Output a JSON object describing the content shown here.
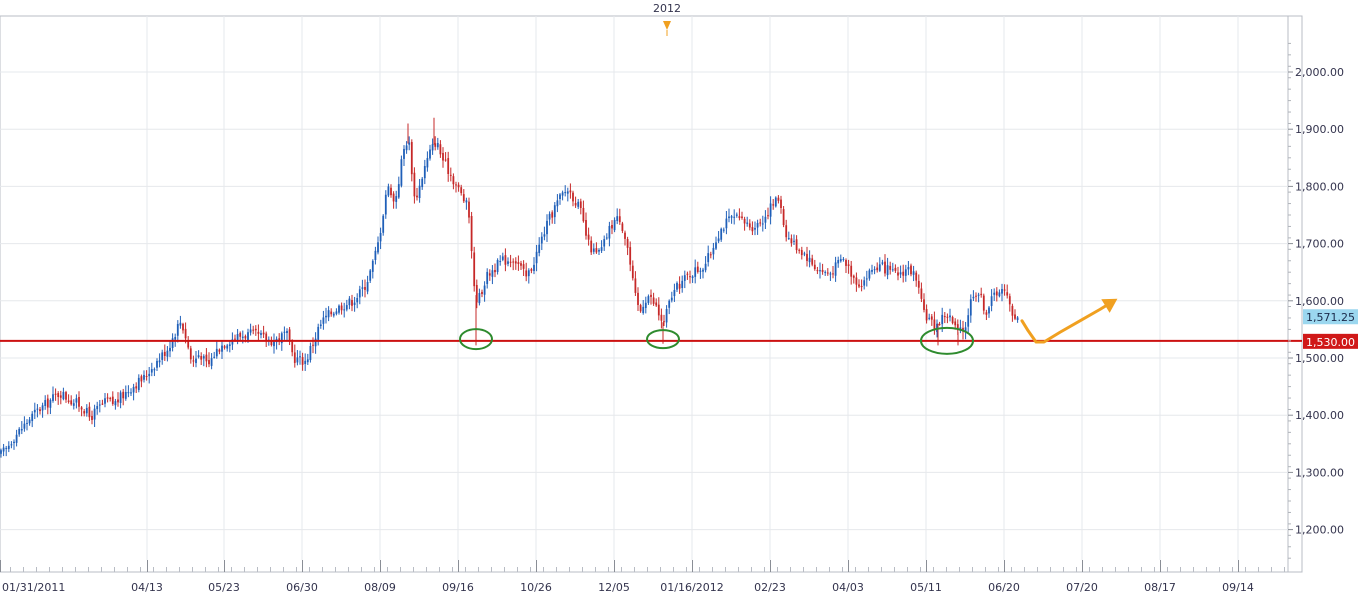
{
  "chart_data": {
    "type": "candlestick",
    "year_marker": "2012",
    "x_tick_labels": [
      "01/31/2011",
      "04/13",
      "05/23",
      "06/30",
      "08/09",
      "09/16",
      "10/26",
      "12/05",
      "01/16/2012",
      "02/23",
      "04/03",
      "05/11",
      "06/20",
      "07/20",
      "08/17",
      "09/14"
    ],
    "y_tick_labels": [
      "1,200.00",
      "1,300.00",
      "1,400.00",
      "1,500.00",
      "1,600.00",
      "1,700.00",
      "1,800.00",
      "1,900.00",
      "2,000.00"
    ],
    "y_ticks": [
      1200,
      1300,
      1400,
      1500,
      1600,
      1700,
      1800,
      1900,
      2000
    ],
    "ylim": [
      1130,
      2110
    ],
    "support_level": 1530,
    "support_label": "1,530.00",
    "last_price": 1571.25,
    "last_price_label": "1,571.25",
    "colors": {
      "up": "#1f5fb8",
      "down": "#c62828",
      "support": "#cc1111",
      "circle": "#2e8b2e",
      "arrow": "#f0a020",
      "last_badge": "#9bd7ef",
      "support_badge": "#d01818"
    },
    "price_path": [
      [
        0,
        1330
      ],
      [
        6,
        1340
      ],
      [
        12,
        1358
      ],
      [
        18,
        1370
      ],
      [
        24,
        1382
      ],
      [
        30,
        1395
      ],
      [
        36,
        1406
      ],
      [
        42,
        1414
      ],
      [
        48,
        1422
      ],
      [
        54,
        1432
      ],
      [
        60,
        1440
      ],
      [
        66,
        1432
      ],
      [
        72,
        1425
      ],
      [
        78,
        1420
      ],
      [
        84,
        1412
      ],
      [
        90,
        1395
      ],
      [
        96,
        1408
      ],
      [
        102,
        1418
      ],
      [
        108,
        1426
      ],
      [
        114,
        1420
      ],
      [
        120,
        1430
      ],
      [
        126,
        1440
      ],
      [
        132,
        1450
      ],
      [
        138,
        1458
      ],
      [
        144,
        1465
      ],
      [
        150,
        1480
      ],
      [
        156,
        1492
      ],
      [
        162,
        1505
      ],
      [
        168,
        1518
      ],
      [
        174,
        1540
      ],
      [
        180,
        1565
      ],
      [
        184,
        1550
      ],
      [
        188,
        1520
      ],
      [
        192,
        1490
      ],
      [
        196,
        1500
      ],
      [
        200,
        1510
      ],
      [
        204,
        1495
      ],
      [
        208,
        1485
      ],
      [
        212,
        1500
      ],
      [
        216,
        1512
      ],
      [
        220,
        1520
      ],
      [
        226,
        1528
      ],
      [
        232,
        1534
      ],
      [
        238,
        1538
      ],
      [
        244,
        1540
      ],
      [
        250,
        1542
      ],
      [
        256,
        1540
      ],
      [
        262,
        1536
      ],
      [
        268,
        1532
      ],
      [
        274,
        1530
      ],
      [
        280,
        1535
      ],
      [
        286,
        1545
      ],
      [
        290,
        1520
      ],
      [
        294,
        1500
      ],
      [
        300,
        1497
      ],
      [
        306,
        1494
      ],
      [
        310,
        1515
      ],
      [
        314,
        1530
      ],
      [
        318,
        1550
      ],
      [
        324,
        1568
      ],
      [
        330,
        1578
      ],
      [
        336,
        1586
      ],
      [
        342,
        1592
      ],
      [
        348,
        1596
      ],
      [
        354,
        1602
      ],
      [
        360,
        1614
      ],
      [
        366,
        1630
      ],
      [
        372,
        1660
      ],
      [
        378,
        1700
      ],
      [
        382,
        1740
      ],
      [
        386,
        1790
      ],
      [
        390,
        1800
      ],
      [
        394,
        1770
      ],
      [
        398,
        1800
      ],
      [
        402,
        1850
      ],
      [
        406,
        1880
      ],
      [
        410,
        1870
      ],
      [
        414,
        1780
      ],
      [
        418,
        1790
      ],
      [
        424,
        1830
      ],
      [
        430,
        1860
      ],
      [
        436,
        1880
      ],
      [
        442,
        1850
      ],
      [
        448,
        1830
      ],
      [
        454,
        1810
      ],
      [
        460,
        1790
      ],
      [
        466,
        1770
      ],
      [
        470,
        1740
      ],
      [
        474,
        1620
      ],
      [
        478,
        1600
      ],
      [
        482,
        1620
      ],
      [
        486,
        1640
      ],
      [
        490,
        1650
      ],
      [
        496,
        1660
      ],
      [
        502,
        1670
      ],
      [
        508,
        1672
      ],
      [
        514,
        1675
      ],
      [
        520,
        1660
      ],
      [
        526,
        1640
      ],
      [
        532,
        1660
      ],
      [
        538,
        1690
      ],
      [
        544,
        1720
      ],
      [
        550,
        1745
      ],
      [
        556,
        1768
      ],
      [
        562,
        1785
      ],
      [
        568,
        1795
      ],
      [
        574,
        1780
      ],
      [
        580,
        1760
      ],
      [
        584,
        1730
      ],
      [
        588,
        1700
      ],
      [
        592,
        1690
      ],
      [
        596,
        1680
      ],
      [
        602,
        1690
      ],
      [
        608,
        1720
      ],
      [
        614,
        1740
      ],
      [
        620,
        1745
      ],
      [
        624,
        1720
      ],
      [
        628,
        1690
      ],
      [
        632,
        1640
      ],
      [
        636,
        1600
      ],
      [
        640,
        1580
      ],
      [
        644,
        1600
      ],
      [
        648,
        1610
      ],
      [
        652,
        1600
      ],
      [
        656,
        1590
      ],
      [
        660,
        1570
      ],
      [
        664,
        1560
      ],
      [
        668,
        1590
      ],
      [
        672,
        1610
      ],
      [
        676,
        1620
      ],
      [
        680,
        1630
      ],
      [
        686,
        1640
      ],
      [
        692,
        1650
      ],
      [
        698,
        1655
      ],
      [
        704,
        1662
      ],
      [
        710,
        1680
      ],
      [
        716,
        1710
      ],
      [
        722,
        1728
      ],
      [
        728,
        1740
      ],
      [
        734,
        1745
      ],
      [
        740,
        1740
      ],
      [
        746,
        1735
      ],
      [
        752,
        1730
      ],
      [
        758,
        1735
      ],
      [
        764,
        1745
      ],
      [
        770,
        1762
      ],
      [
        776,
        1775
      ],
      [
        780,
        1780
      ],
      [
        784,
        1730
      ],
      [
        788,
        1710
      ],
      [
        794,
        1700
      ],
      [
        800,
        1690
      ],
      [
        806,
        1680
      ],
      [
        812,
        1665
      ],
      [
        818,
        1655
      ],
      [
        824,
        1650
      ],
      [
        830,
        1648
      ],
      [
        836,
        1660
      ],
      [
        842,
        1675
      ],
      [
        848,
        1660
      ],
      [
        854,
        1640
      ],
      [
        860,
        1630
      ],
      [
        866,
        1640
      ],
      [
        872,
        1655
      ],
      [
        878,
        1660
      ],
      [
        884,
        1658
      ],
      [
        890,
        1650
      ],
      [
        896,
        1645
      ],
      [
        902,
        1650
      ],
      [
        908,
        1658
      ],
      [
        914,
        1645
      ],
      [
        918,
        1620
      ],
      [
        922,
        1590
      ],
      [
        926,
        1575
      ],
      [
        930,
        1565
      ],
      [
        934,
        1555
      ],
      [
        938,
        1560
      ],
      [
        942,
        1570
      ],
      [
        946,
        1578
      ],
      [
        950,
        1570
      ],
      [
        954,
        1555
      ],
      [
        958,
        1545
      ],
      [
        962,
        1545
      ],
      [
        966,
        1560
      ],
      [
        970,
        1595
      ],
      [
        974,
        1618
      ],
      [
        978,
        1615
      ],
      [
        982,
        1600
      ],
      [
        986,
        1580
      ],
      [
        990,
        1595
      ],
      [
        994,
        1610
      ],
      [
        998,
        1620
      ],
      [
        1002,
        1618
      ],
      [
        1006,
        1610
      ],
      [
        1010,
        1590
      ],
      [
        1014,
        1575
      ],
      [
        1020,
        1571
      ]
    ],
    "projection": [
      [
        1022,
        1565
      ],
      [
        1028,
        1548
      ],
      [
        1036,
        1528
      ],
      [
        1044,
        1528
      ],
      [
        1060,
        1545
      ],
      [
        1080,
        1565
      ],
      [
        1100,
        1585
      ],
      [
        1114,
        1600
      ]
    ],
    "support_touches": [
      {
        "x_index": 476,
        "price": 1533,
        "rx": 16,
        "ry": 10
      },
      {
        "x_index": 663,
        "price": 1533,
        "rx": 16,
        "ry": 9
      },
      {
        "x_index": 947,
        "price": 1530,
        "rx": 26,
        "ry": 13
      }
    ]
  }
}
